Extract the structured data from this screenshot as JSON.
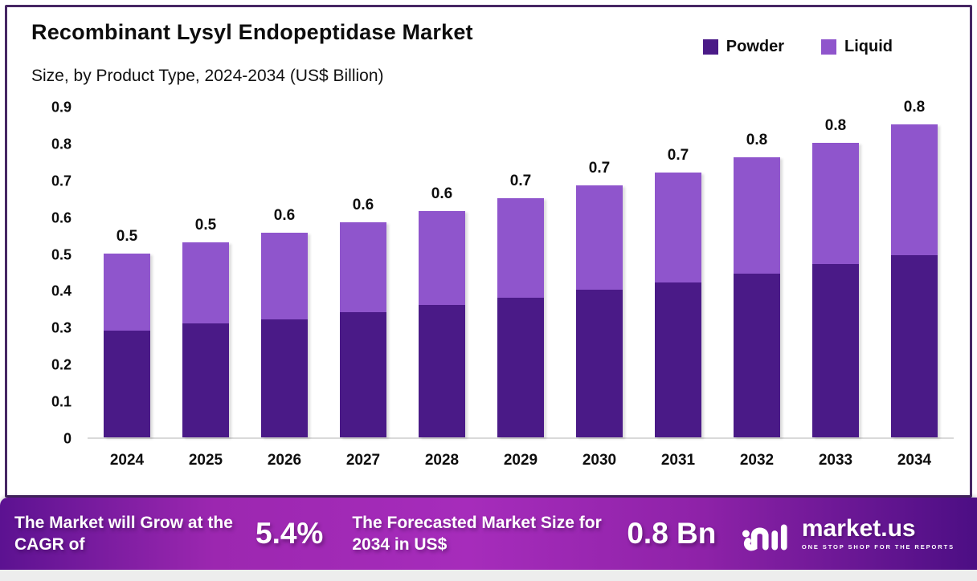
{
  "header": {
    "title": "Recombinant Lysyl Endopeptidase Market",
    "subtitle": "Size, by Product Type, 2024-2034 (US$ Billion)"
  },
  "legend": {
    "items": [
      {
        "label": "Powder",
        "color": "#4A1A87"
      },
      {
        "label": "Liquid",
        "color": "#8F55CC"
      }
    ]
  },
  "chart_data": {
    "type": "bar",
    "stacked": true,
    "title": "Recombinant Lysyl Endopeptidase Market Size, by Product Type, 2024-2034 (US$ Billion)",
    "categories": [
      "2024",
      "2025",
      "2026",
      "2027",
      "2028",
      "2029",
      "2030",
      "2031",
      "2032",
      "2033",
      "2034"
    ],
    "series": [
      {
        "name": "Powder",
        "color": "#4A1A87",
        "values": [
          0.29,
          0.31,
          0.32,
          0.34,
          0.36,
          0.38,
          0.4,
          0.42,
          0.445,
          0.47,
          0.495
        ]
      },
      {
        "name": "Liquid",
        "color": "#8F55CC",
        "values": [
          0.21,
          0.22,
          0.235,
          0.245,
          0.255,
          0.27,
          0.285,
          0.3,
          0.315,
          0.33,
          0.355
        ]
      }
    ],
    "totals": [
      0.5,
      0.53,
      0.555,
      0.585,
      0.615,
      0.65,
      0.685,
      0.72,
      0.76,
      0.8,
      0.85
    ],
    "bar_labels": [
      "0.5",
      "0.5",
      "0.6",
      "0.6",
      "0.6",
      "0.7",
      "0.7",
      "0.7",
      "0.8",
      "0.8",
      "0.8"
    ],
    "xlabel": "",
    "ylabel": "",
    "ylim": [
      0,
      0.9
    ],
    "yticks": [
      "0",
      "0.1",
      "0.2",
      "0.3",
      "0.4",
      "0.5",
      "0.6",
      "0.7",
      "0.8",
      "0.9"
    ],
    "grid": false,
    "legend_position": "top-right"
  },
  "banner": {
    "cagr_label": "The Market will Grow at the CAGR of",
    "cagr_value": "5.4%",
    "forecast_label": "The Forecasted Market Size for 2034 in US$",
    "forecast_value": "0.8 Bn",
    "brand": {
      "name": "market.us",
      "tagline": "ONE STOP SHOP FOR THE REPORTS"
    }
  },
  "colors": {
    "card_border": "#472764",
    "axis_line": "#d9d9d9",
    "text": "#0d0d0d",
    "banner_gradient": [
      "#5c1291",
      "#9c27b0",
      "#a62cbb",
      "#8e22a8",
      "#4c0e84"
    ],
    "bottom_strip": "#ededed"
  }
}
